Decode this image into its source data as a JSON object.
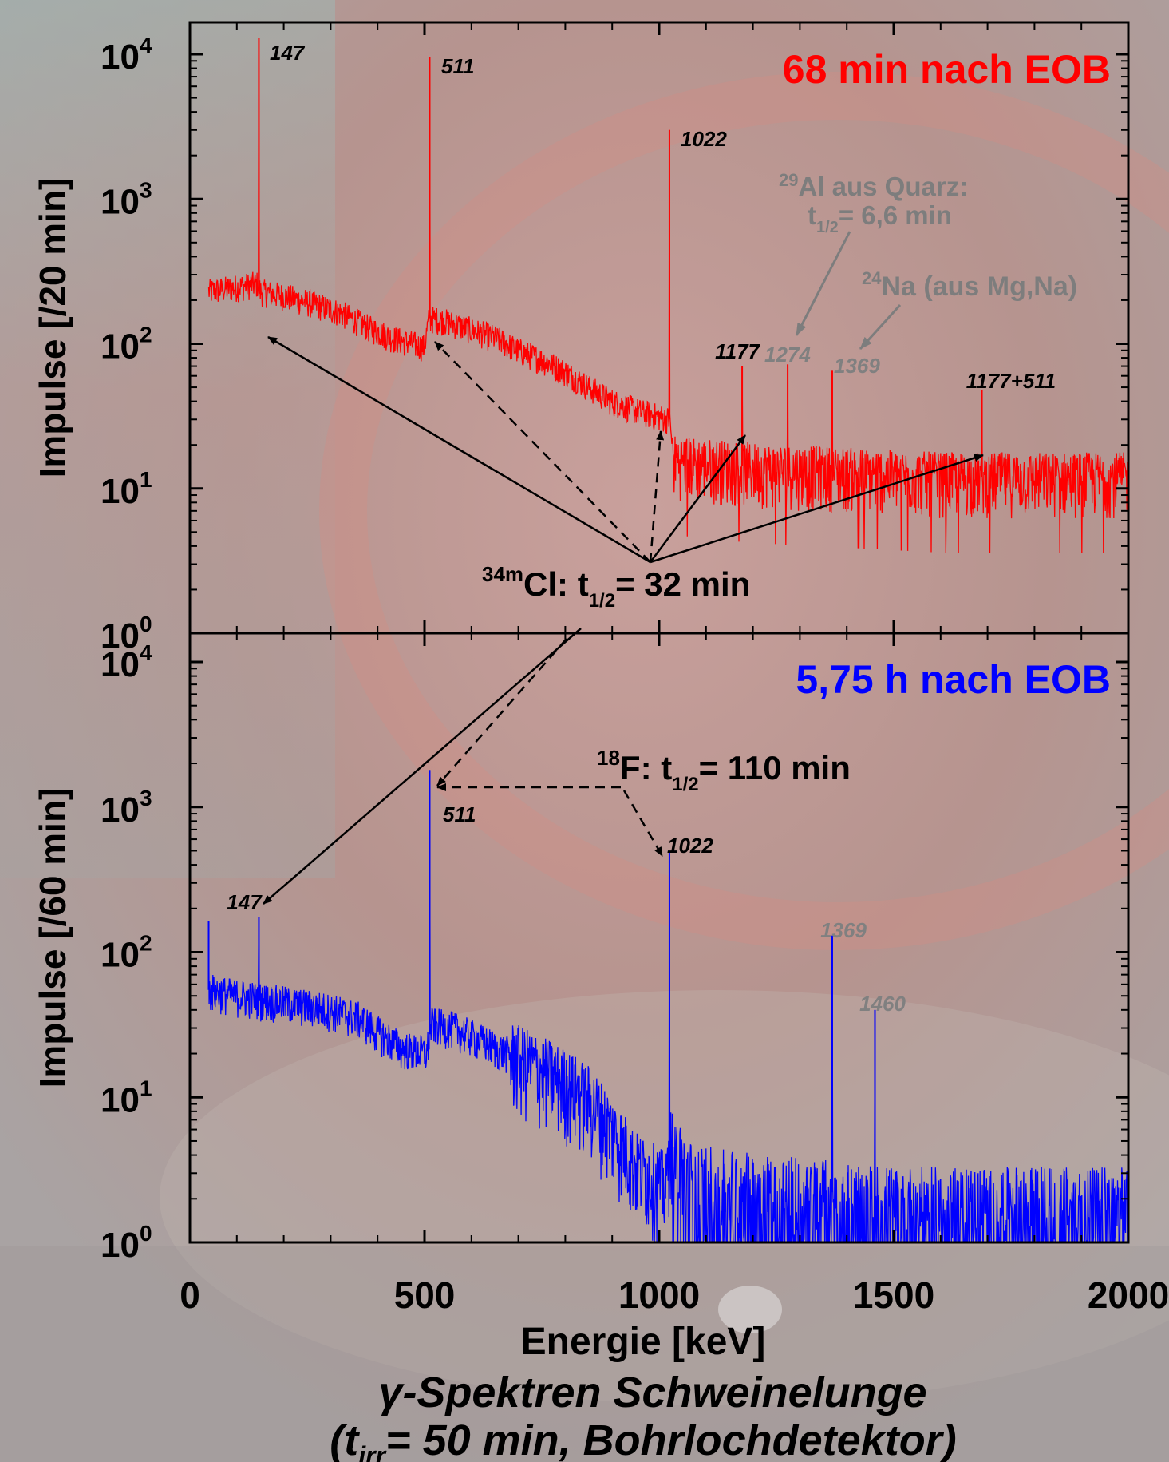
{
  "chart_data": [
    {
      "type": "line",
      "title": "68 min nach EOB",
      "ylabel": "Impulse [/20 min]",
      "yscale": "log",
      "xlim": [
        0,
        2000
      ],
      "ylim": [
        1,
        10000
      ],
      "y_tick_labels": [
        {
          "base": "10",
          "exp": "0"
        },
        {
          "base": "10",
          "exp": "1"
        },
        {
          "base": "10",
          "exp": "2"
        },
        {
          "base": "10",
          "exp": "3"
        },
        {
          "base": "10",
          "exp": "4"
        }
      ],
      "color": "#ff0000",
      "baseline": [
        [
          40,
          230
        ],
        [
          145,
          260
        ],
        [
          150,
          230
        ],
        [
          200,
          215
        ],
        [
          260,
          190
        ],
        [
          320,
          165
        ],
        [
          380,
          130
        ],
        [
          430,
          110
        ],
        [
          500,
          95
        ],
        [
          510,
          150
        ],
        [
          540,
          145
        ],
        [
          600,
          125
        ],
        [
          650,
          110
        ],
        [
          700,
          90
        ],
        [
          760,
          75
        ],
        [
          850,
          50
        ],
        [
          900,
          40
        ],
        [
          960,
          34
        ],
        [
          1022,
          30
        ],
        [
          1030,
          16
        ],
        [
          1100,
          15
        ],
        [
          1200,
          14
        ],
        [
          1400,
          13
        ],
        [
          1600,
          12
        ],
        [
          1800,
          12
        ],
        [
          2000,
          12
        ]
      ],
      "peaks": [
        {
          "x": 147,
          "y": 13000,
          "label": "147",
          "label_color": "#000000"
        },
        {
          "x": 511,
          "y": 9500,
          "label": "511",
          "label_color": "#000000"
        },
        {
          "x": 1022,
          "y": 3000,
          "label": "1022",
          "label_color": "#000000"
        },
        {
          "x": 1177,
          "y": 70,
          "label": "1177",
          "label_color": "#000000"
        },
        {
          "x": 1274,
          "y": 72,
          "label": "1274",
          "label_color": "#808080"
        },
        {
          "x": 1369,
          "y": 65,
          "label": "1369",
          "label_color": "#808080"
        },
        {
          "x": 1688,
          "y": 48,
          "label": "1177+511",
          "label_color": "#000000"
        }
      ]
    },
    {
      "type": "line",
      "title": "5,75 h nach EOB",
      "ylabel": "Impulse [/60 min]",
      "xlabel": "Energie [keV]",
      "yscale": "log",
      "xlim": [
        0,
        2000
      ],
      "ylim": [
        1,
        10000
      ],
      "x_ticks": [
        0,
        500,
        1000,
        1500,
        2000
      ],
      "x_tick_labels": [
        "0",
        "500",
        "1000",
        "1500",
        "2000"
      ],
      "y_tick_labels": [
        {
          "base": "10",
          "exp": "0"
        },
        {
          "base": "10",
          "exp": "1"
        },
        {
          "base": "10",
          "exp": "2"
        },
        {
          "base": "10",
          "exp": "3"
        },
        {
          "base": "10",
          "exp": "4"
        }
      ],
      "color": "#0000ff",
      "baseline": [
        [
          40,
          55
        ],
        [
          100,
          50
        ],
        [
          200,
          45
        ],
        [
          300,
          40
        ],
        [
          360,
          35
        ],
        [
          400,
          28
        ],
        [
          450,
          22
        ],
        [
          505,
          20
        ],
        [
          515,
          32
        ],
        [
          560,
          30
        ],
        [
          650,
          22
        ],
        [
          750,
          16
        ],
        [
          850,
          10
        ],
        [
          900,
          6
        ],
        [
          950,
          3.5
        ],
        [
          1015,
          2.5
        ],
        [
          1025,
          5
        ],
        [
          1060,
          3
        ],
        [
          1200,
          2.5
        ],
        [
          1500,
          2
        ],
        [
          2000,
          2
        ]
      ],
      "peaks": [
        {
          "x": 40,
          "y": 165,
          "label": "",
          "label_color": "#000000"
        },
        {
          "x": 147,
          "y": 175,
          "label": "147",
          "label_color": "#000000"
        },
        {
          "x": 511,
          "y": 1800,
          "label": "511",
          "label_color": "#000000"
        },
        {
          "x": 1022,
          "y": 500,
          "label": "1022",
          "label_color": "#000000"
        },
        {
          "x": 1369,
          "y": 130,
          "label": "1369",
          "label_color": "#808080"
        },
        {
          "x": 1460,
          "y": 40,
          "label": "1460",
          "label_color": "#808080"
        }
      ]
    }
  ],
  "annotations": {
    "top_title": "68 min nach EOB",
    "top_title_color": "#ff0000",
    "bottom_title": "5,75 h nach EOB",
    "bottom_title_color": "#0000ff",
    "al_line1_sup": "29",
    "al_line1": "Al aus Quarz:",
    "al_line2_pre": "t",
    "al_line2_sub": "1/2",
    "al_line2_post": "= 6,6 min",
    "na_sup": "24",
    "na_text": "Na (aus Mg,Na)",
    "cl_sup": "34m",
    "cl_main": "Cl:  t",
    "cl_sub": "1/2",
    "cl_post": "= 32 min",
    "f_sup": "18",
    "f_main": "F:  t",
    "f_sub": "1/2",
    "f_post": "= 110 min",
    "caption_line1": "γ-Spektren Schweinelunge",
    "caption2_pre": "(t",
    "caption2_sub": "irr",
    "caption2_post": "= 50 min, Bohrlochdetektor)"
  }
}
